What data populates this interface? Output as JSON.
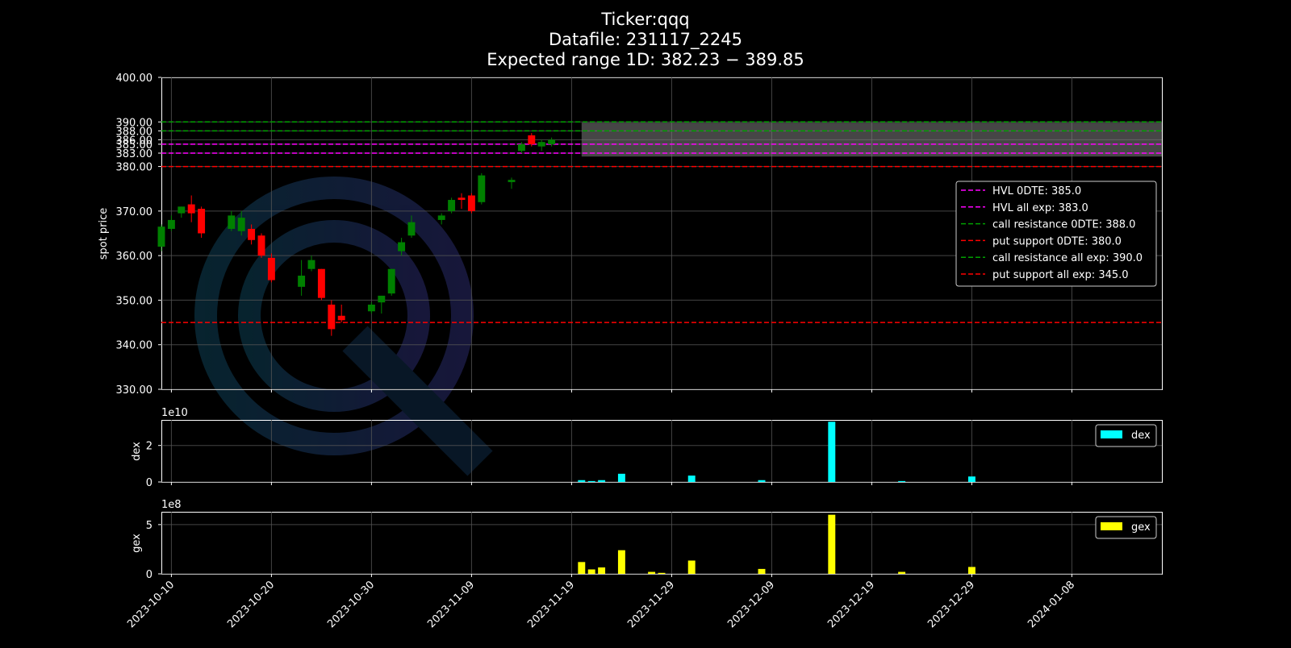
{
  "chart_data": {
    "type": "candlestick",
    "title": [
      "Ticker:qqq",
      "Datafile: 231117_2245",
      "Expected range 1D: 382.23 − 389.85"
    ],
    "x_ticks": [
      "2023-10-10",
      "2023-10-20",
      "2023-10-30",
      "2023-11-09",
      "2023-11-19",
      "2023-11-29",
      "2023-12-09",
      "2023-12-19",
      "2023-12-29",
      "2024-01-08"
    ],
    "x_range": [
      "2023-10-09",
      "2024-01-17"
    ],
    "grid": true,
    "price": {
      "ylabel": "spot price",
      "ylim": [
        330,
        400
      ],
      "y_ticks": [
        "330.00",
        "340.00",
        "350.00",
        "360.00",
        "370.00",
        "380.00",
        "383.00",
        "385.00",
        "386.00",
        "388.00",
        "390.00",
        "400.00"
      ],
      "candles": [
        {
          "date": "2023-10-09",
          "open": 362,
          "high": 367,
          "low": 361,
          "close": 366.5
        },
        {
          "date": "2023-10-10",
          "open": 366,
          "high": 369,
          "low": 365.5,
          "close": 368
        },
        {
          "date": "2023-10-11",
          "open": 369.5,
          "high": 371,
          "low": 368.5,
          "close": 371
        },
        {
          "date": "2023-10-12",
          "open": 371.5,
          "high": 373.5,
          "low": 367.5,
          "close": 369.5
        },
        {
          "date": "2023-10-13",
          "open": 370.5,
          "high": 371,
          "low": 364,
          "close": 365
        },
        {
          "date": "2023-10-16",
          "open": 366,
          "high": 370,
          "low": 365.5,
          "close": 369
        },
        {
          "date": "2023-10-17",
          "open": 365.5,
          "high": 370,
          "low": 364.5,
          "close": 368.5
        },
        {
          "date": "2023-10-18",
          "open": 366,
          "high": 367,
          "low": 362.5,
          "close": 363.5
        },
        {
          "date": "2023-10-19",
          "open": 364.5,
          "high": 365,
          "low": 359.5,
          "close": 360
        },
        {
          "date": "2023-10-20",
          "open": 359.5,
          "high": 360.5,
          "low": 354,
          "close": 354.5
        },
        {
          "date": "2023-10-23",
          "open": 353,
          "high": 359,
          "low": 351,
          "close": 355.5
        },
        {
          "date": "2023-10-24",
          "open": 357,
          "high": 360,
          "low": 356.5,
          "close": 359
        },
        {
          "date": "2023-10-25",
          "open": 357,
          "high": 357,
          "low": 350,
          "close": 350.5
        },
        {
          "date": "2023-10-26",
          "open": 349,
          "high": 350,
          "low": 342,
          "close": 343.5
        },
        {
          "date": "2023-10-27",
          "open": 346.5,
          "high": 349,
          "low": 345,
          "close": 345.5
        },
        {
          "date": "2023-10-30",
          "open": 347.5,
          "high": 349.5,
          "low": 347,
          "close": 349
        },
        {
          "date": "2023-10-31",
          "open": 349.5,
          "high": 351,
          "low": 347,
          "close": 351
        },
        {
          "date": "2023-11-01",
          "open": 351.5,
          "high": 357,
          "low": 351,
          "close": 357
        },
        {
          "date": "2023-11-02",
          "open": 361,
          "high": 364,
          "low": 360,
          "close": 363
        },
        {
          "date": "2023-11-03",
          "open": 364.5,
          "high": 369,
          "low": 364,
          "close": 367.5
        },
        {
          "date": "2023-11-06",
          "open": 368,
          "high": 369.5,
          "low": 367,
          "close": 369
        },
        {
          "date": "2023-11-07",
          "open": 370,
          "high": 373,
          "low": 369.5,
          "close": 372.5
        },
        {
          "date": "2023-11-08",
          "open": 373,
          "high": 374,
          "low": 370.5,
          "close": 372.5
        },
        {
          "date": "2023-11-09",
          "open": 373.5,
          "high": 374,
          "low": 369.5,
          "close": 370
        },
        {
          "date": "2023-11-10",
          "open": 372,
          "high": 378.5,
          "low": 371.5,
          "close": 378
        },
        {
          "date": "2023-11-13",
          "open": 376.5,
          "high": 377.5,
          "low": 375,
          "close": 377
        },
        {
          "date": "2023-11-14",
          "open": 383.5,
          "high": 385.5,
          "low": 383,
          "close": 385
        },
        {
          "date": "2023-11-15",
          "open": 387,
          "high": 387.5,
          "low": 384.5,
          "close": 385
        },
        {
          "date": "2023-11-16",
          "open": 384.5,
          "high": 386,
          "low": 383.5,
          "close": 385.5
        },
        {
          "date": "2023-11-17",
          "open": 385,
          "high": 386.5,
          "low": 384.5,
          "close": 386
        }
      ],
      "expected_range": {
        "from": "2023-11-20",
        "low": 382.23,
        "high": 389.85,
        "color": "#808080"
      },
      "levels": [
        {
          "label": "HVL 0DTE: 385.0",
          "value": 385.0,
          "color": "#ff00ff"
        },
        {
          "label": "HVL all exp: 383.0",
          "value": 383.0,
          "color": "#ff00ff"
        },
        {
          "label": "call resistance 0DTE: 388.0",
          "value": 388.0,
          "color": "#00a000"
        },
        {
          "label": "put support 0DTE: 380.0",
          "value": 380.0,
          "color": "#ff0000"
        },
        {
          "label": "call resistance all exp: 390.0",
          "value": 390.0,
          "color": "#00a000"
        },
        {
          "label": "put support all exp: 345.0",
          "value": 345.0,
          "color": "#ff0000"
        }
      ],
      "legend_position": "right"
    },
    "dex": {
      "ylabel": "dex",
      "exponent": "1e10",
      "ylim": [
        0,
        3.4
      ],
      "y_ticks": [
        0,
        2
      ],
      "color": "#00ffff",
      "legend": "dex",
      "bars": [
        {
          "date": "2023-11-20",
          "value": 0.1
        },
        {
          "date": "2023-11-21",
          "value": 0.05
        },
        {
          "date": "2023-11-22",
          "value": 0.1
        },
        {
          "date": "2023-11-24",
          "value": 0.45
        },
        {
          "date": "2023-12-01",
          "value": 0.35
        },
        {
          "date": "2023-12-08",
          "value": 0.1
        },
        {
          "date": "2023-12-15",
          "value": 3.3
        },
        {
          "date": "2023-12-22",
          "value": 0.05
        },
        {
          "date": "2023-12-29",
          "value": 0.3
        }
      ]
    },
    "gex": {
      "ylabel": "gex",
      "exponent": "1e8",
      "ylim": [
        0,
        6.3
      ],
      "y_ticks": [
        0,
        5
      ],
      "color": "#ffff00",
      "legend": "gex",
      "bars": [
        {
          "date": "2023-11-20",
          "value": 1.2
        },
        {
          "date": "2023-11-21",
          "value": 0.45
        },
        {
          "date": "2023-11-22",
          "value": 0.65
        },
        {
          "date": "2023-11-24",
          "value": 2.4
        },
        {
          "date": "2023-11-27",
          "value": 0.2
        },
        {
          "date": "2023-11-28",
          "value": 0.1
        },
        {
          "date": "2023-12-01",
          "value": 1.35
        },
        {
          "date": "2023-12-08",
          "value": 0.5
        },
        {
          "date": "2023-12-15",
          "value": 6.0
        },
        {
          "date": "2023-12-22",
          "value": 0.2
        },
        {
          "date": "2023-12-29",
          "value": 0.7
        }
      ]
    }
  }
}
